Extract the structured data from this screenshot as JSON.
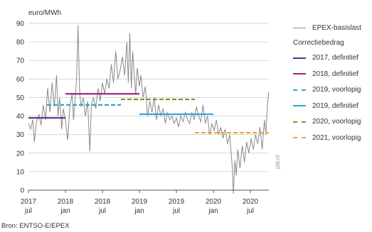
{
  "source_note": "Bron: ENTSO-E/EPEX",
  "watermark": "pbl.nl",
  "legend": {
    "heading": "Correctiebedrag",
    "items": [
      {
        "label": "EPEX-basislast",
        "color": "#8a8a8a",
        "style": "thin"
      },
      {
        "label": "2017, definitief",
        "color": "#5b2d86",
        "style": "solid"
      },
      {
        "label": "2018, definitief",
        "color": "#a3227e",
        "style": "solid"
      },
      {
        "label": "2019, voorlopig",
        "color": "#2fa6d4",
        "style": "dashed"
      },
      {
        "label": "2019, definitief",
        "color": "#2fa6d4",
        "style": "solid"
      },
      {
        "label": "2020, voorlopig",
        "color": "#8a8f1c",
        "style": "dashed"
      },
      {
        "label": "2021, voorlopig",
        "color": "#e8a83a",
        "style": "dashed"
      }
    ]
  },
  "chart_data": {
    "type": "line",
    "ylabel": "euro/MWh",
    "ylim": [
      0,
      90
    ],
    "yticks": [
      0,
      10,
      20,
      30,
      40,
      50,
      60,
      70,
      80,
      90
    ],
    "xlim": [
      2017.5,
      2020.75
    ],
    "xticks": [
      {
        "value": 2017.5,
        "year": "2017",
        "month": "jul"
      },
      {
        "value": 2018.0,
        "year": "2018",
        "month": "jan"
      },
      {
        "value": 2018.5,
        "year": "2018",
        "month": "jul"
      },
      {
        "value": 2019.0,
        "year": "2019",
        "month": "jan"
      },
      {
        "value": 2019.5,
        "year": "2019",
        "month": "jul"
      },
      {
        "value": 2020.0,
        "year": "2020",
        "month": "jan"
      },
      {
        "value": 2020.5,
        "year": "2020",
        "month": "jul"
      }
    ],
    "grid": true,
    "series": [
      {
        "name": "EPEX-basislast",
        "color": "#8a8a8a",
        "points": [
          [
            2017.5,
            36
          ],
          [
            2017.53,
            33
          ],
          [
            2017.56,
            38
          ],
          [
            2017.58,
            26
          ],
          [
            2017.61,
            37
          ],
          [
            2017.64,
            41
          ],
          [
            2017.67,
            35
          ],
          [
            2017.7,
            46
          ],
          [
            2017.73,
            38
          ],
          [
            2017.76,
            55
          ],
          [
            2017.79,
            42
          ],
          [
            2017.82,
            58
          ],
          [
            2017.85,
            45
          ],
          [
            2017.88,
            62
          ],
          [
            2017.9,
            40
          ],
          [
            2017.92,
            50
          ],
          [
            2017.95,
            33
          ],
          [
            2017.97,
            44
          ],
          [
            2018.0,
            38
          ],
          [
            2018.03,
            27
          ],
          [
            2018.06,
            45
          ],
          [
            2018.09,
            52
          ],
          [
            2018.11,
            38
          ],
          [
            2018.13,
            48
          ],
          [
            2018.15,
            60
          ],
          [
            2018.17,
            89
          ],
          [
            2018.19,
            55
          ],
          [
            2018.21,
            45
          ],
          [
            2018.24,
            50
          ],
          [
            2018.27,
            40
          ],
          [
            2018.3,
            48
          ],
          [
            2018.33,
            21
          ],
          [
            2018.35,
            46
          ],
          [
            2018.38,
            50
          ],
          [
            2018.41,
            44
          ],
          [
            2018.44,
            55
          ],
          [
            2018.47,
            48
          ],
          [
            2018.5,
            58
          ],
          [
            2018.53,
            52
          ],
          [
            2018.56,
            60
          ],
          [
            2018.59,
            55
          ],
          [
            2018.62,
            68
          ],
          [
            2018.65,
            58
          ],
          [
            2018.68,
            75
          ],
          [
            2018.71,
            60
          ],
          [
            2018.74,
            65
          ],
          [
            2018.77,
            72
          ],
          [
            2018.8,
            62
          ],
          [
            2018.83,
            80
          ],
          [
            2018.85,
            58
          ],
          [
            2018.87,
            85
          ],
          [
            2018.89,
            55
          ],
          [
            2018.91,
            75
          ],
          [
            2018.93,
            62
          ],
          [
            2018.95,
            52
          ],
          [
            2018.97,
            66
          ],
          [
            2019.0,
            56
          ],
          [
            2019.02,
            62
          ],
          [
            2019.05,
            50
          ],
          [
            2019.08,
            56
          ],
          [
            2019.11,
            40
          ],
          [
            2019.14,
            48
          ],
          [
            2019.17,
            42
          ],
          [
            2019.2,
            50
          ],
          [
            2019.23,
            38
          ],
          [
            2019.26,
            46
          ],
          [
            2019.29,
            40
          ],
          [
            2019.32,
            44
          ],
          [
            2019.35,
            36
          ],
          [
            2019.38,
            42
          ],
          [
            2019.41,
            38
          ],
          [
            2019.44,
            40
          ],
          [
            2019.47,
            36
          ],
          [
            2019.5,
            39
          ],
          [
            2019.53,
            34
          ],
          [
            2019.56,
            40
          ],
          [
            2019.59,
            37
          ],
          [
            2019.62,
            42
          ],
          [
            2019.65,
            38
          ],
          [
            2019.68,
            36
          ],
          [
            2019.71,
            42
          ],
          [
            2019.74,
            38
          ],
          [
            2019.77,
            45
          ],
          [
            2019.8,
            40
          ],
          [
            2019.83,
            37
          ],
          [
            2019.86,
            46
          ],
          [
            2019.89,
            36
          ],
          [
            2019.92,
            40
          ],
          [
            2019.95,
            30
          ],
          [
            2019.98,
            36
          ],
          [
            2020.01,
            32
          ],
          [
            2020.04,
            38
          ],
          [
            2020.07,
            30
          ],
          [
            2020.1,
            34
          ],
          [
            2020.13,
            28
          ],
          [
            2020.16,
            33
          ],
          [
            2020.19,
            25
          ],
          [
            2020.22,
            30
          ],
          [
            2020.24,
            20
          ],
          [
            2020.26,
            10
          ],
          [
            2020.27,
            -2
          ],
          [
            2020.29,
            16
          ],
          [
            2020.31,
            8
          ],
          [
            2020.33,
            22
          ],
          [
            2020.36,
            12
          ],
          [
            2020.39,
            24
          ],
          [
            2020.42,
            15
          ],
          [
            2020.45,
            26
          ],
          [
            2020.48,
            20
          ],
          [
            2020.51,
            28
          ],
          [
            2020.54,
            22
          ],
          [
            2020.57,
            30
          ],
          [
            2020.6,
            25
          ],
          [
            2020.63,
            34
          ],
          [
            2020.66,
            22
          ],
          [
            2020.69,
            38
          ],
          [
            2020.71,
            30
          ],
          [
            2020.73,
            46
          ],
          [
            2020.75,
            53
          ]
        ]
      },
      {
        "name": "2017, definitief",
        "color": "#5b2d86",
        "style": "solid",
        "x": [
          2017.5,
          2018.0
        ],
        "y": 39
      },
      {
        "name": "2018, definitief",
        "color": "#a3227e",
        "style": "solid",
        "x": [
          2018.0,
          2019.0
        ],
        "y": 52
      },
      {
        "name": "2019, voorlopig",
        "color": "#2fa6d4",
        "style": "dashed",
        "x": [
          2017.75,
          2018.75
        ],
        "y": 46
      },
      {
        "name": "2019, definitief",
        "color": "#2fa6d4",
        "style": "solid",
        "x": [
          2019.0,
          2020.0
        ],
        "y": 41
      },
      {
        "name": "2020, voorlopig",
        "color": "#8a8f1c",
        "style": "dashed",
        "x": [
          2018.75,
          2019.75
        ],
        "y": 49
      },
      {
        "name": "2021, voorlopig",
        "color": "#e8a83a",
        "style": "dashed",
        "x": [
          2019.75,
          2020.75
        ],
        "y": 31
      }
    ]
  }
}
